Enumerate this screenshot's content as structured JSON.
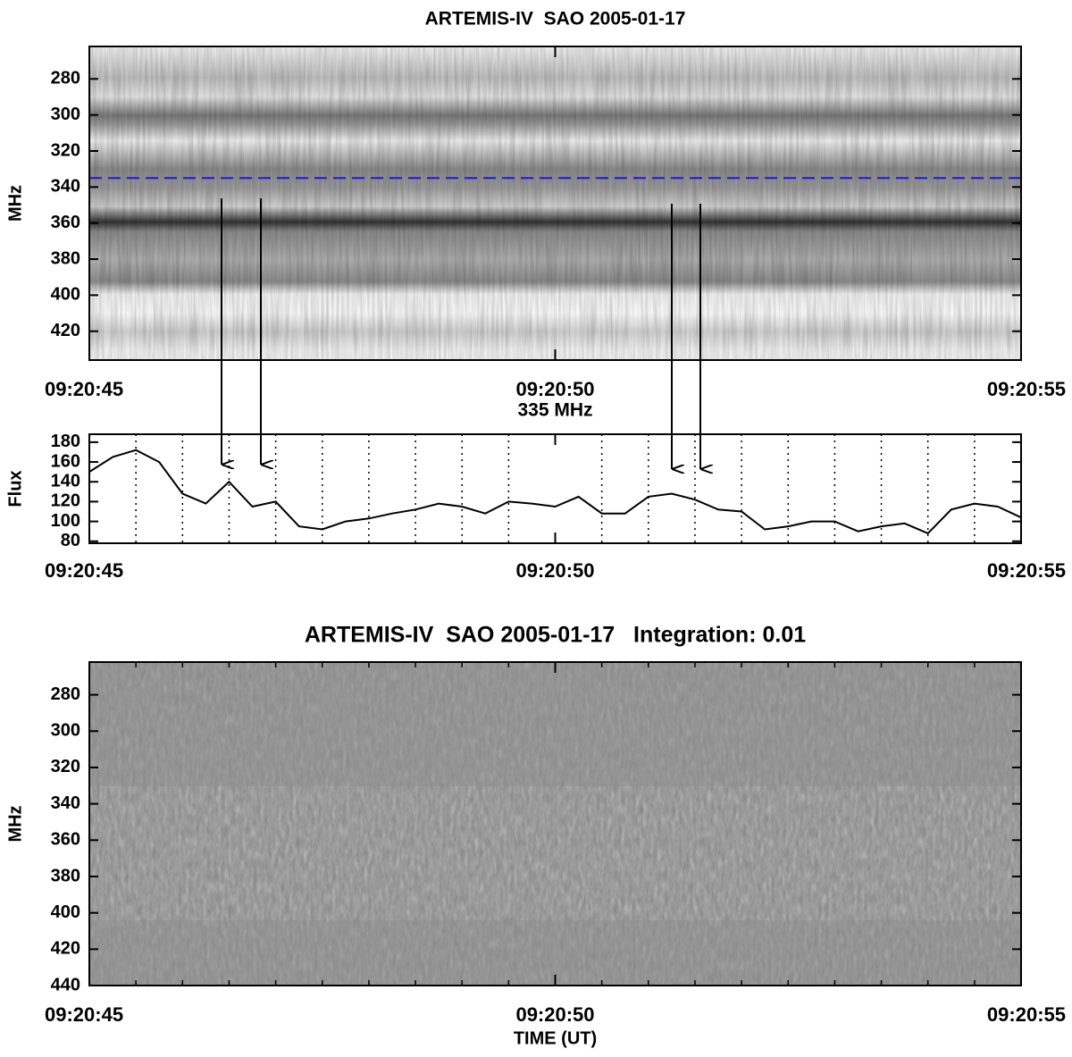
{
  "chart_data": [
    {
      "type": "spectrogram",
      "title": "ARTEMIS-IV  SAO 2005-01-17",
      "ylabel": "MHz",
      "xlim": [
        45,
        55
      ],
      "xticks": [
        {
          "value": 45,
          "label": "09:20:45"
        },
        {
          "value": 50,
          "label": "09:20:50"
        },
        {
          "value": 55,
          "label": "09:20:55"
        }
      ],
      "ylim": [
        436,
        262
      ],
      "yticks": [
        280,
        300,
        320,
        340,
        360,
        380,
        400,
        420
      ],
      "hline": {
        "value": 335,
        "color": "#1a1adc"
      }
    },
    {
      "type": "line",
      "title": "335 MHz",
      "ylabel": "Flux",
      "color": "#000000",
      "x": [
        45.0,
        45.25,
        45.5,
        45.75,
        46.0,
        46.25,
        46.5,
        46.75,
        47.0,
        47.25,
        47.5,
        47.75,
        48.0,
        48.25,
        48.5,
        48.75,
        49.0,
        49.25,
        49.5,
        49.75,
        50.0,
        50.25,
        50.5,
        50.75,
        51.0,
        51.25,
        51.5,
        51.75,
        52.0,
        52.25,
        52.5,
        52.75,
        53.0,
        53.25,
        53.5,
        53.75,
        54.0,
        54.25,
        54.5,
        54.75,
        55.0
      ],
      "values": [
        150,
        165,
        172,
        160,
        128,
        118,
        140,
        115,
        120,
        95,
        92,
        100,
        103,
        108,
        112,
        118,
        115,
        108,
        120,
        118,
        115,
        125,
        108,
        108,
        125,
        128,
        122,
        112,
        110,
        92,
        95,
        100,
        100,
        90,
        95,
        98,
        88,
        112,
        118,
        115,
        104
      ],
      "xlim": [
        45,
        55
      ],
      "xticks": [
        {
          "value": 45,
          "label": "09:20:45"
        },
        {
          "value": 50,
          "label": "09:20:50"
        },
        {
          "value": 55,
          "label": "09:20:55"
        }
      ],
      "xminorticks": [
        45.5,
        46,
        46.5,
        47,
        47.5,
        48,
        48.5,
        49,
        49.5,
        50.5,
        51,
        51.5,
        52,
        52.5,
        53,
        53.5,
        54,
        54.5
      ],
      "ylim": [
        78,
        188
      ],
      "yticks": [
        80,
        100,
        120,
        140,
        160,
        180
      ]
    },
    {
      "type": "spectrogram",
      "title": "ARTEMIS-IV  SAO 2005-01-17   Integration: 0.01",
      "ylabel": "MHz",
      "xlabel": "TIME (UT)",
      "xlim": [
        45,
        55
      ],
      "xticks": [
        {
          "value": 45,
          "label": "09:20:45"
        },
        {
          "value": 50,
          "label": "09:20:50"
        },
        {
          "value": 55,
          "label": "09:20:55"
        }
      ],
      "xminorticks": [
        45.5,
        46,
        46.5,
        47,
        47.5,
        48,
        48.5,
        49,
        49.5,
        50.5,
        51,
        51.5,
        52,
        52.5,
        53,
        53.5,
        54,
        54.5
      ],
      "ylim": [
        440,
        262
      ],
      "yticks": [
        280,
        300,
        320,
        340,
        360,
        380,
        400,
        420,
        440
      ]
    }
  ]
}
